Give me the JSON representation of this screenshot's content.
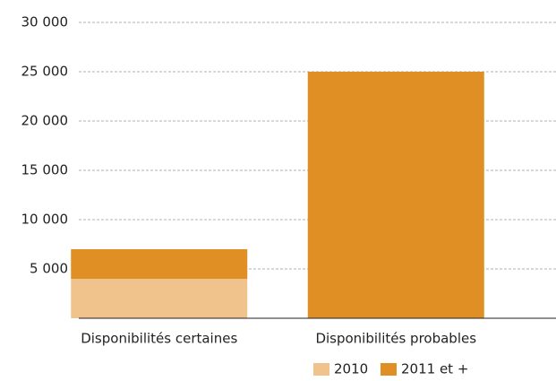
{
  "chart_data": {
    "type": "stacked_bar",
    "categories": [
      "Disponibilités certaines",
      "Disponibilités probables"
    ],
    "series": [
      {
        "name": "2010",
        "color": "#f0c28c",
        "values": [
          4000,
          0
        ]
      },
      {
        "name": "2011 et +",
        "color": "#e08f25",
        "values": [
          3000,
          25000
        ]
      }
    ],
    "ylim": [
      0,
      30000
    ],
    "yticks": [
      {
        "value": 5000,
        "label": "5 000"
      },
      {
        "value": 10000,
        "label": "10 000"
      },
      {
        "value": 15000,
        "label": "15 000"
      },
      {
        "value": 20000,
        "label": "20 000"
      },
      {
        "value": 25000,
        "label": "25 000"
      },
      {
        "value": 30000,
        "label": "30 000"
      }
    ],
    "grid": true
  }
}
